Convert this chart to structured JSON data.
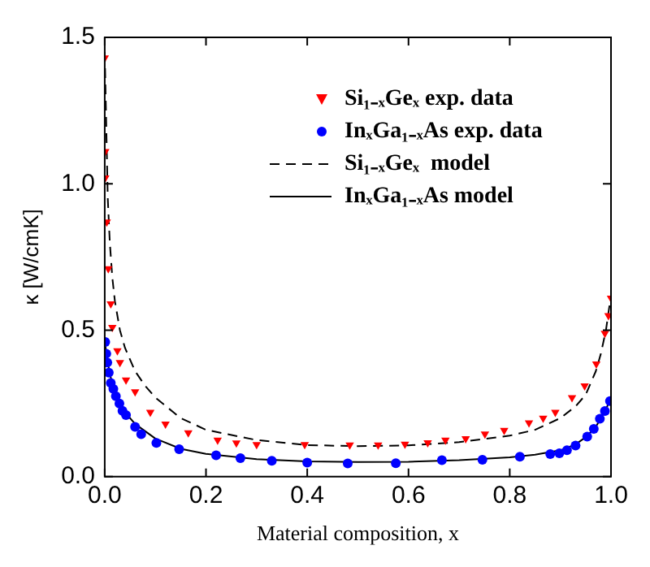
{
  "chart_data": {
    "type": "scatter",
    "xlabel": "Material composition, x",
    "ylabel": "κ [W/cmK]",
    "xlim": [
      0,
      1
    ],
    "ylim": [
      0,
      1.5
    ],
    "xticks": [
      {
        "value": 0,
        "label": "0.0"
      },
      {
        "value": 0.2,
        "label": "0.2"
      },
      {
        "value": 0.4,
        "label": "0.4"
      },
      {
        "value": 0.6,
        "label": "0.6"
      },
      {
        "value": 0.8,
        "label": "0.8"
      },
      {
        "value": 1,
        "label": "1.0"
      }
    ],
    "yticks": [
      {
        "value": 0,
        "label": "0.0"
      },
      {
        "value": 0.5,
        "label": "0.5"
      },
      {
        "value": 1,
        "label": "1.0"
      },
      {
        "value": 1.5,
        "label": "1.5"
      }
    ],
    "grid": false,
    "legend": "top right",
    "series": [
      {
        "name": "Si₁₋ₓGeₓ exp. data",
        "type": "scatter",
        "marker": "triangle",
        "color": "#ff0000",
        "x": [
          0.0,
          0.001,
          0.001,
          0.004,
          0.007,
          0.012,
          0.015,
          0.025,
          0.03,
          0.042,
          0.06,
          0.09,
          0.12,
          0.165,
          0.223,
          0.26,
          0.3,
          0.395,
          0.484,
          0.54,
          0.593,
          0.638,
          0.673,
          0.713,
          0.751,
          0.789,
          0.838,
          0.866,
          0.89,
          0.923,
          0.948,
          0.971,
          0.988,
          0.995,
          1.0
        ],
        "values": [
          1.43,
          1.11,
          1.02,
          0.87,
          0.71,
          0.59,
          0.51,
          0.43,
          0.39,
          0.33,
          0.29,
          0.22,
          0.18,
          0.15,
          0.125,
          0.115,
          0.11,
          0.11,
          0.108,
          0.108,
          0.111,
          0.116,
          0.125,
          0.13,
          0.146,
          0.158,
          0.184,
          0.2,
          0.22,
          0.27,
          0.31,
          0.385,
          0.49,
          0.55,
          0.61
        ]
      },
      {
        "name": "InₓGa₁₋ₓAs exp. data",
        "type": "scatter",
        "marker": "circle",
        "color": "#0000ff",
        "x": [
          0.001,
          0.003,
          0.005,
          0.008,
          0.012,
          0.017,
          0.022,
          0.029,
          0.035,
          0.042,
          0.06,
          0.072,
          0.102,
          0.147,
          0.22,
          0.268,
          0.33,
          0.4,
          0.48,
          0.575,
          0.666,
          0.746,
          0.82,
          0.88,
          0.898,
          0.913,
          0.93,
          0.953,
          0.966,
          0.978,
          0.988,
          0.998
        ],
        "values": [
          0.46,
          0.42,
          0.39,
          0.355,
          0.32,
          0.3,
          0.275,
          0.25,
          0.225,
          0.21,
          0.17,
          0.145,
          0.115,
          0.094,
          0.073,
          0.063,
          0.054,
          0.048,
          0.045,
          0.046,
          0.056,
          0.058,
          0.068,
          0.077,
          0.08,
          0.09,
          0.106,
          0.137,
          0.163,
          0.198,
          0.224,
          0.258
        ]
      },
      {
        "name": "Si₁₋ₓGeₓ  model",
        "type": "line",
        "marker": "none",
        "line_style": "dashed",
        "color": "#000000",
        "x": [
          0,
          0.003,
          0.006,
          0.01,
          0.015,
          0.02,
          0.03,
          0.04,
          0.06,
          0.08,
          0.1,
          0.15,
          0.2,
          0.3,
          0.4,
          0.5,
          0.6,
          0.7,
          0.8,
          0.85,
          0.9,
          0.93,
          0.95,
          0.97,
          0.98,
          0.99,
          1.0
        ],
        "values": [
          1.45,
          1.2,
          0.95,
          0.8,
          0.68,
          0.6,
          0.5,
          0.44,
          0.36,
          0.31,
          0.27,
          0.2,
          0.16,
          0.125,
          0.108,
          0.104,
          0.107,
          0.118,
          0.14,
          0.16,
          0.2,
          0.24,
          0.28,
          0.36,
          0.42,
          0.5,
          0.62
        ]
      },
      {
        "name": "InₓGa₁₋ₓAs model",
        "type": "line",
        "marker": "none",
        "line_style": "solid",
        "color": "#000000",
        "x": [
          0,
          0.01,
          0.02,
          0.04,
          0.06,
          0.1,
          0.15,
          0.2,
          0.3,
          0.4,
          0.5,
          0.6,
          0.7,
          0.8,
          0.85,
          0.9,
          0.93,
          0.95,
          0.97,
          0.99,
          1.0
        ],
        "values": [
          0.46,
          0.35,
          0.29,
          0.22,
          0.18,
          0.13,
          0.095,
          0.078,
          0.06,
          0.052,
          0.05,
          0.051,
          0.056,
          0.066,
          0.075,
          0.09,
          0.11,
          0.135,
          0.17,
          0.23,
          0.27
        ]
      }
    ]
  }
}
